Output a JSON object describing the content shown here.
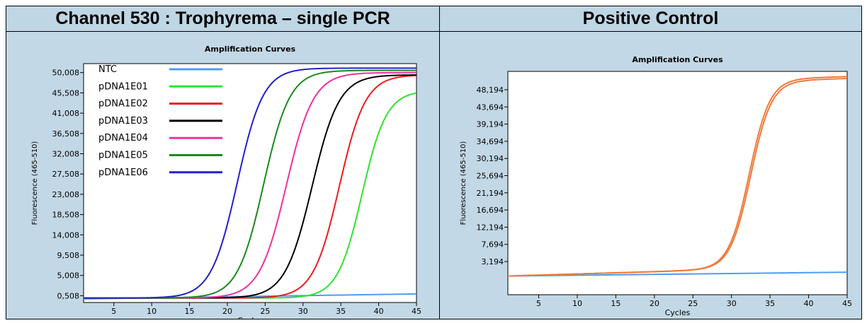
{
  "headers": {
    "left": "Channel 530 : Trophyrema – single PCR",
    "right": "Positive Control"
  },
  "chart_data": [
    {
      "type": "line",
      "title": "Amplification Curves",
      "xlabel": "Cycles",
      "ylabel": "Fluorescence (465-510)",
      "xlim": [
        1,
        45
      ],
      "ylim": [
        -1.0,
        52.0
      ],
      "xticks": [
        5,
        10,
        15,
        20,
        25,
        30,
        35,
        40,
        45
      ],
      "xtick_labels": [
        "5",
        "10",
        "15",
        "20",
        "25",
        "30",
        "35",
        "40",
        "45"
      ],
      "yticks": [
        0.508,
        5.008,
        9.508,
        14.008,
        18.508,
        23.008,
        27.508,
        32.008,
        36.508,
        41.008,
        45.508,
        50.008
      ],
      "ytick_labels": [
        "0,508",
        "5,008",
        "9,508",
        "14,008",
        "18,508",
        "23,008",
        "27,508",
        "32,008",
        "36,508",
        "41,008",
        "45,508",
        "50,008"
      ],
      "legend": "top-left",
      "series": [
        {
          "name": "NTC",
          "color": "#4f9cf5",
          "kind": "flat",
          "base": -0.2,
          "end": 0.9
        },
        {
          "name": "pDNA1E01",
          "color": "#2ee52e",
          "kind": "sigmoid",
          "ct": 37.8,
          "k": 0.62,
          "plateau": 46.0,
          "base": 0.0
        },
        {
          "name": "pDNA1E02",
          "color": "#ee1c1c",
          "kind": "sigmoid",
          "ct": 34.8,
          "k": 0.58,
          "plateau": 49.5,
          "base": 0.0
        },
        {
          "name": "pDNA1E03",
          "color": "#000000",
          "kind": "sigmoid",
          "ct": 31.2,
          "k": 0.56,
          "plateau": 49.5,
          "base": 0.0
        },
        {
          "name": "pDNA1E04",
          "color": "#f0309a",
          "kind": "sigmoid",
          "ct": 27.8,
          "k": 0.56,
          "plateau": 50.0,
          "base": 0.0
        },
        {
          "name": "pDNA1E05",
          "color": "#1a8a1a",
          "kind": "sigmoid",
          "ct": 24.8,
          "k": 0.58,
          "plateau": 50.5,
          "base": 0.0
        },
        {
          "name": "pDNA1E06",
          "color": "#2020d0",
          "kind": "sigmoid",
          "ct": 21.3,
          "k": 0.58,
          "plateau": 51.0,
          "base": 0.0
        }
      ]
    },
    {
      "type": "line",
      "title": "Amplification Curves",
      "xlabel": "Cycles",
      "ylabel": "Fluorescence (465-510)",
      "xlim": [
        1,
        45
      ],
      "ylim": [
        -5.5,
        53.0
      ],
      "xticks": [
        5,
        10,
        15,
        20,
        25,
        30,
        35,
        40,
        45
      ],
      "xtick_labels": [
        "5",
        "10",
        "15",
        "20",
        "25",
        "30",
        "35",
        "40",
        "45"
      ],
      "yticks": [
        3.194,
        7.694,
        12.194,
        16.694,
        21.194,
        25.694,
        30.194,
        34.694,
        39.194,
        43.694,
        48.194
      ],
      "ytick_labels": [
        "3,194",
        "7,694",
        "12,194",
        "16,694",
        "21,194",
        "25,694",
        "30,194",
        "34,694",
        "39,194",
        "43,694",
        "48,194"
      ],
      "legend": "none",
      "series": [
        {
          "color": "#4f9cf5",
          "kind": "flat",
          "base": -0.6,
          "end": 0.4
        },
        {
          "color": "#f07a3a",
          "kind": "sigmoid",
          "ct": 32.3,
          "k": 0.75,
          "plateau": 49.0,
          "base": -0.6,
          "drift": 0.06
        },
        {
          "color": "#f07a3a",
          "kind": "sigmoid",
          "ct": 32.5,
          "k": 0.75,
          "plateau": 48.5,
          "base": -0.6,
          "drift": 0.06
        }
      ]
    }
  ]
}
